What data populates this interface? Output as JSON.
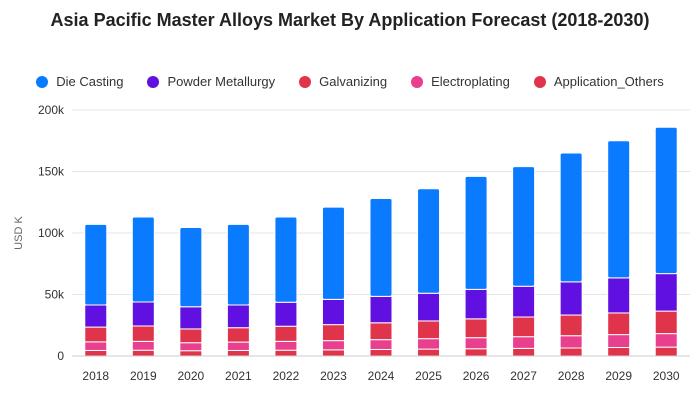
{
  "chart_data": {
    "type": "bar",
    "stacked": true,
    "title": "Asia Pacific Master Alloys Market By Application Forecast (2018-2030)",
    "xlabel": "",
    "ylabel": "USD K",
    "ylim": [
      0,
      200000
    ],
    "yticks": [
      0,
      50000,
      100000,
      150000,
      200000
    ],
    "ytick_labels": [
      "0",
      "50k",
      "100k",
      "150k",
      "200k"
    ],
    "grid": true,
    "legend_position": "top",
    "categories": [
      "2018",
      "2019",
      "2020",
      "2021",
      "2022",
      "2023",
      "2024",
      "2025",
      "2026",
      "2027",
      "2028",
      "2029",
      "2030"
    ],
    "series": [
      {
        "name": "Application_Others",
        "color": "#e0344b",
        "values": [
          4500,
          4700,
          4300,
          4500,
          4700,
          5000,
          5300,
          5600,
          5900,
          6200,
          6500,
          6900,
          7200
        ]
      },
      {
        "name": "Electroplating",
        "color": "#e8408f",
        "values": [
          7000,
          7200,
          6500,
          6800,
          7200,
          7500,
          8000,
          8500,
          9000,
          9500,
          10000,
          10500,
          11000
        ]
      },
      {
        "name": "Galvanizing",
        "color": "#e0344b",
        "values": [
          12000,
          12500,
          11200,
          11700,
          12300,
          13000,
          13700,
          14400,
          15300,
          16000,
          16800,
          17600,
          18300
        ]
      },
      {
        "name": "Powder Metallurgy",
        "color": "#6010e0",
        "values": [
          18000,
          19500,
          18000,
          18500,
          19500,
          20500,
          21500,
          22500,
          24000,
          25000,
          27000,
          28500,
          30500
        ]
      },
      {
        "name": "Die Casting",
        "color": "#0a7bff",
        "values": [
          65500,
          69100,
          64500,
          65500,
          69300,
          75000,
          79500,
          85000,
          91800,
          97300,
          104700,
          111500,
          119000
        ]
      }
    ]
  },
  "legend": [
    {
      "label": "Die Casting",
      "color": "#0a7bff"
    },
    {
      "label": "Powder Metallurgy",
      "color": "#6010e0"
    },
    {
      "label": "Galvanizing",
      "color": "#e0344b"
    },
    {
      "label": "Electroplating",
      "color": "#e8408f"
    },
    {
      "label": "Application_Others",
      "color": "#e0344b"
    }
  ]
}
